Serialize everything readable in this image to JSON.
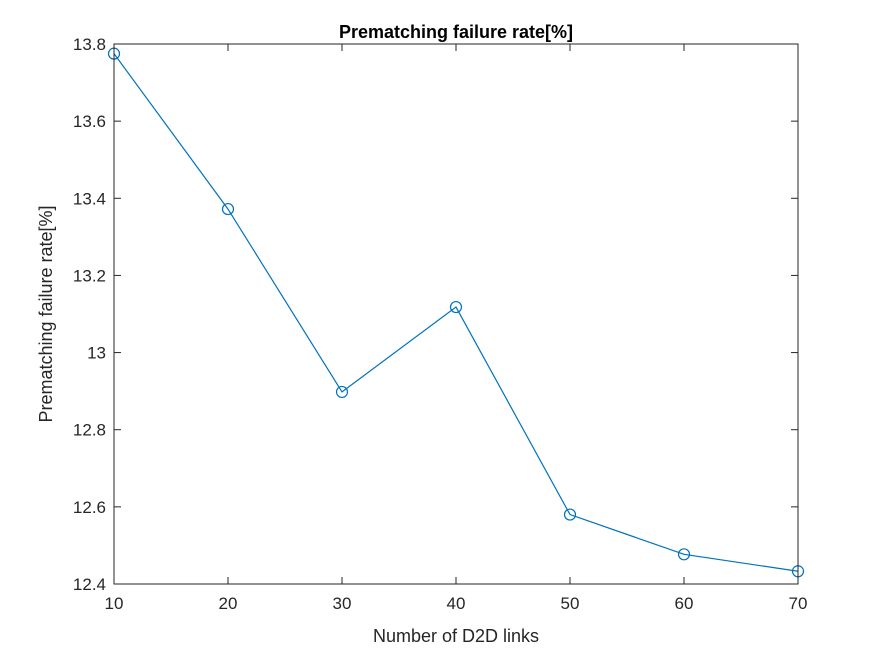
{
  "chart_data": {
    "type": "line",
    "title": "Prematching failure rate[%]",
    "xlabel": "Number of D2D links",
    "ylabel": "Prematching failure rate[%]",
    "xlim": [
      10,
      70
    ],
    "ylim": [
      12.4,
      13.8
    ],
    "xticks": [
      10,
      20,
      30,
      40,
      50,
      60,
      70
    ],
    "xtick_labels": [
      "10",
      "20",
      "30",
      "40",
      "50",
      "60",
      "70"
    ],
    "yticks": [
      12.4,
      12.6,
      12.8,
      13.0,
      13.2,
      13.4,
      13.6,
      13.8
    ],
    "ytick_labels": [
      "12.4",
      "12.6",
      "12.8",
      "13",
      "13.2",
      "13.4",
      "13.6",
      "13.8"
    ],
    "grid": false,
    "box": true,
    "series": [
      {
        "color": "#0072BD",
        "marker": "circle",
        "x": [
          10,
          20,
          30,
          40,
          50,
          60,
          70
        ],
        "y": [
          13.775,
          13.372,
          12.898,
          13.118,
          12.58,
          12.477,
          12.433
        ]
      }
    ]
  }
}
